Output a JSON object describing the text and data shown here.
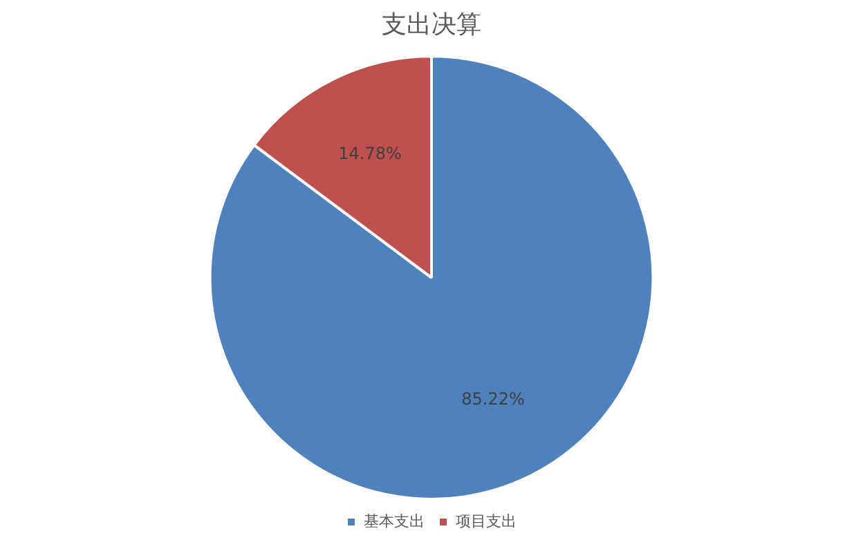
{
  "chart_data": {
    "type": "pie",
    "title": "支出决算",
    "categories": [
      "基本支出",
      "项目支出"
    ],
    "values": [
      85.22,
      14.78
    ],
    "colors": [
      "#4f81bd",
      "#c0504d"
    ],
    "value_labels": [
      "85.22%",
      "14.78%"
    ],
    "legend": "bottom"
  }
}
